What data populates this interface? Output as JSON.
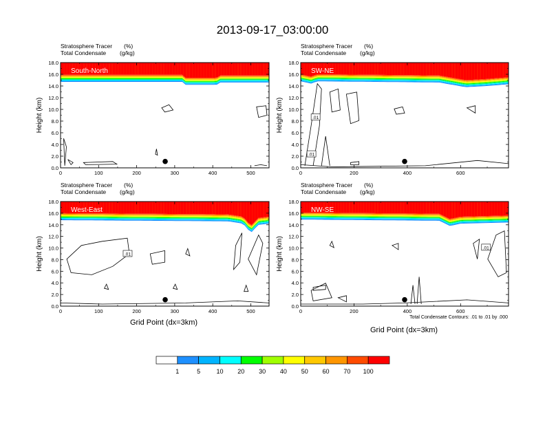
{
  "title": "2013-09-17_03:00:00",
  "panel_header": {
    "line1_name": "Stratosphere Tracer",
    "line1_unit": "(%)",
    "line2_name": "Total Condensate",
    "line2_unit": "(g/kg)"
  },
  "ylabel": "Height (km)",
  "xlabel": "Grid Point (dx=3km)",
  "contour_note": "Total Condensate Contours: .01 to .01 by .000",
  "colorbar": {
    "levels": [
      "1",
      "5",
      "10",
      "20",
      "30",
      "40",
      "50",
      "60",
      "70",
      "100"
    ],
    "colors": [
      "#ffffff",
      "#1e90ff",
      "#00b4ff",
      "#00ffff",
      "#00e68c",
      "#00ff00",
      "#a0ff00",
      "#ffff00",
      "#ffc800",
      "#ff9600",
      "#ff4b00",
      "#ff0000"
    ]
  },
  "chart_data": [
    {
      "type": "heatmap",
      "name": "South-North",
      "xlim": [
        0,
        548
      ],
      "ylim": [
        0,
        18
      ],
      "xticks": [
        0,
        100,
        200,
        300,
        400,
        500
      ],
      "yticks": [
        0,
        2,
        4,
        6,
        8,
        10,
        12,
        14,
        16,
        18
      ],
      "ytick_labels": [
        "0.0",
        "2.0",
        "4.0",
        "6.0",
        "8.0",
        "10.0",
        "12.0",
        "14.0",
        "16.0",
        "18.0"
      ],
      "tracer_top_km": [
        [
          0,
          15.3
        ],
        [
          320,
          15.3
        ],
        [
          325,
          14.8
        ],
        [
          410,
          14.8
        ],
        [
          420,
          15.2
        ],
        [
          548,
          15.2
        ]
      ],
      "marker_x": 275,
      "marker_km": 1.1,
      "contour_labels": []
    },
    {
      "type": "heatmap",
      "name": "SW-NE",
      "xlim": [
        0,
        780
      ],
      "ylim": [
        0,
        18
      ],
      "xticks": [
        0,
        200,
        400,
        600
      ],
      "yticks": [
        0,
        2,
        4,
        6,
        8,
        10,
        12,
        14,
        16,
        18
      ],
      "ytick_labels": [
        "0.0",
        "2.0",
        "4.0",
        "6.0",
        "8.0",
        "10.0",
        "12.0",
        "14.0",
        "16.0",
        "18.0"
      ],
      "tracer_top_km": [
        [
          0,
          15.4
        ],
        [
          40,
          15.0
        ],
        [
          60,
          15.4
        ],
        [
          520,
          15.2
        ],
        [
          620,
          14.4
        ],
        [
          700,
          14.6
        ],
        [
          780,
          14.9
        ]
      ],
      "marker_x": 390,
      "marker_km": 1.1,
      "contour_labels": [
        ".01",
        ".01"
      ]
    },
    {
      "type": "heatmap",
      "name": "West-East",
      "xlim": [
        0,
        548
      ],
      "ylim": [
        0,
        18
      ],
      "xticks": [
        0,
        100,
        200,
        300,
        400,
        500
      ],
      "yticks": [
        0,
        2,
        4,
        6,
        8,
        10,
        12,
        14,
        16,
        18
      ],
      "ytick_labels": [
        "0.0",
        "2.0",
        "4.0",
        "6.0",
        "8.0",
        "10.0",
        "12.0",
        "14.0",
        "16.0",
        "18.0"
      ],
      "tracer_top_km": [
        [
          0,
          15.4
        ],
        [
          440,
          15.2
        ],
        [
          480,
          14.8
        ],
        [
          500,
          13.2
        ],
        [
          520,
          14.6
        ],
        [
          548,
          14.8
        ]
      ],
      "marker_x": 275,
      "marker_km": 1.1,
      "contour_labels": [
        ".01"
      ]
    },
    {
      "type": "heatmap",
      "name": "NW-SE",
      "xlim": [
        0,
        780
      ],
      "ylim": [
        0,
        18
      ],
      "xticks": [
        0,
        200,
        400,
        600
      ],
      "yticks": [
        0,
        2,
        4,
        6,
        8,
        10,
        12,
        14,
        16,
        18
      ],
      "ytick_labels": [
        "0.0",
        "2.0",
        "4.0",
        "6.0",
        "8.0",
        "10.0",
        "12.0",
        "14.0",
        "16.0",
        "18.0"
      ],
      "tracer_top_km": [
        [
          0,
          15.5
        ],
        [
          520,
          15.3
        ],
        [
          560,
          14.4
        ],
        [
          600,
          14.8
        ],
        [
          780,
          15.0
        ]
      ],
      "marker_x": 390,
      "marker_km": 1.1,
      "contour_labels": [
        ".01"
      ]
    }
  ]
}
